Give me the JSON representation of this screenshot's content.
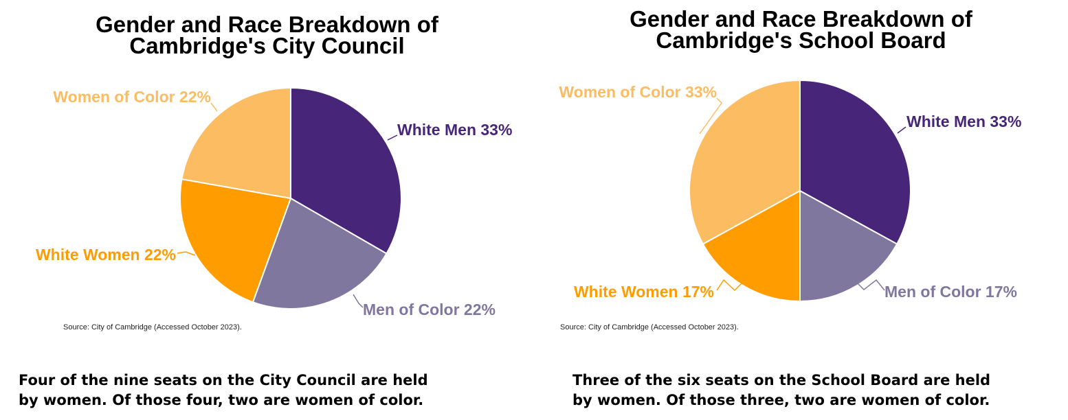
{
  "chart_data": [
    {
      "type": "pie",
      "title_lines": [
        "Gender and Race Breakdown of",
        "Cambridge's City Council"
      ],
      "slices": [
        {
          "label": "White Men 33%",
          "value": 33,
          "color": "#47267A"
        },
        {
          "label": "Men of Color 22%",
          "value": 22,
          "color": "#80779E"
        },
        {
          "label": "White Women 22%",
          "value": 22,
          "color": "#FF9C00"
        },
        {
          "label": "Women of Color 22%",
          "value": 22,
          "color": "#FBBC62"
        }
      ],
      "source": "Source: City of Cambridge (Accessed October 2023).",
      "caption_lines": [
        "Four of the nine seats on the City Council are held",
        "by women. Of those four, two are women of color."
      ]
    },
    {
      "type": "pie",
      "title_lines": [
        "Gender and Race Breakdown of",
        "Cambridge's School Board"
      ],
      "slices": [
        {
          "label": "White Men 33%",
          "value": 33,
          "color": "#47267A"
        },
        {
          "label": "Men of Color 17%",
          "value": 17,
          "color": "#80779E"
        },
        {
          "label": "White Women 17%",
          "value": 17,
          "color": "#FF9C00"
        },
        {
          "label": "Women of Color 33%",
          "value": 33,
          "color": "#FBBC62"
        }
      ],
      "source": "Source: City of Cambridge (Accessed October 2023).",
      "caption_lines": [
        "Three of the six seats on the School Board are held",
        "by women. Of those three, two are women of color."
      ]
    }
  ]
}
